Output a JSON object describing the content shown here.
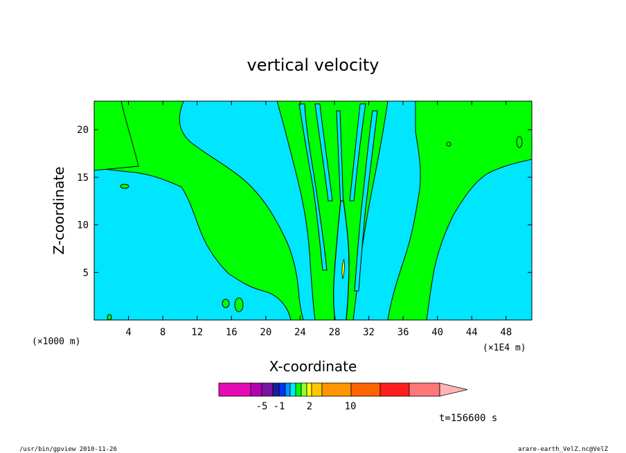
{
  "chart_data": {
    "type": "heatmap",
    "title": "vertical velocity",
    "xlabel": "X-coordinate",
    "ylabel": "Z-coordinate",
    "x_ticks": [
      4,
      8,
      12,
      16,
      20,
      24,
      28,
      32,
      36,
      40,
      44,
      48
    ],
    "y_ticks": [
      5,
      10,
      15,
      20
    ],
    "xlim": [
      0,
      51
    ],
    "ylim": [
      0,
      23
    ],
    "x_unit_note_left": "(×1000 m)",
    "x_unit_note_right": "(×1E4 m)",
    "time_label": "t=156600 s",
    "colorbar": {
      "colors": [
        "#e60ab4",
        "#b400b4",
        "#7814a0",
        "#1e1e96",
        "#0032ff",
        "#0096ff",
        "#00e6ff",
        "#00ff00",
        "#96ff32",
        "#ffff00",
        "#ffc800",
        "#ff9600",
        "#ff6400",
        "#ff1e1e",
        "#ff7878"
      ],
      "widths": [
        46,
        16,
        16,
        9,
        9,
        7,
        8,
        8,
        8,
        7,
        15,
        42,
        42,
        42,
        44
      ],
      "extend_color": "#ffb4b4",
      "tick_labels": [
        {
          "label": "-5",
          "value": -5
        },
        {
          "label": "-1",
          "value": -1
        },
        {
          "label": "2",
          "value": 2
        },
        {
          "label": "10",
          "value": 10
        }
      ]
    },
    "grid": false,
    "legend": "colorbar-bottom"
  },
  "footer": {
    "left": "/usr/bin/gpview  2010-11-26",
    "right": "arare-earth_VelZ.nc@VelZ"
  }
}
